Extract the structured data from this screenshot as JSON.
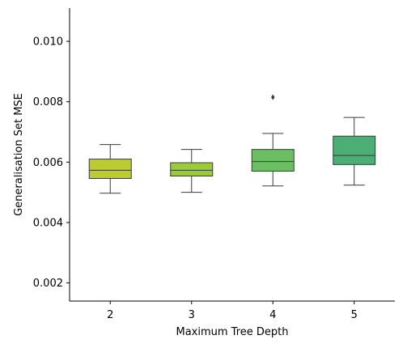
{
  "chart_data": {
    "type": "box",
    "title": "",
    "xlabel": "Maximum Tree Depth",
    "ylabel": "Generalisation Set MSE",
    "ylim": [
      0.0014,
      0.0111
    ],
    "yticks": [
      "0.002",
      "0.004",
      "0.006",
      "0.008",
      "0.010"
    ],
    "ytick_values": [
      0.002,
      0.004,
      0.006,
      0.008,
      0.01
    ],
    "categories": [
      "2",
      "3",
      "4",
      "5"
    ],
    "boxes": [
      {
        "category": "2",
        "whisker_low": 0.00497,
        "q1": 0.00546,
        "median": 0.00573,
        "q3": 0.0061,
        "whisker_high": 0.00658,
        "outliers": [],
        "color": "#bccc2f"
      },
      {
        "category": "3",
        "whisker_low": 0.005,
        "q1": 0.00554,
        "median": 0.00573,
        "q3": 0.00598,
        "whisker_high": 0.00642,
        "outliers": [],
        "color": "#9ccb3a"
      },
      {
        "category": "4",
        "whisker_low": 0.00521,
        "q1": 0.0057,
        "median": 0.00602,
        "q3": 0.00642,
        "whisker_high": 0.00695,
        "outliers": [
          0.00815
        ],
        "color": "#6abf63"
      },
      {
        "category": "5",
        "whisker_low": 0.00524,
        "q1": 0.00592,
        "median": 0.00622,
        "q3": 0.00686,
        "whisker_high": 0.00748,
        "outliers": [],
        "color": "#4aae75"
      }
    ],
    "grid": false,
    "legend": "none"
  }
}
